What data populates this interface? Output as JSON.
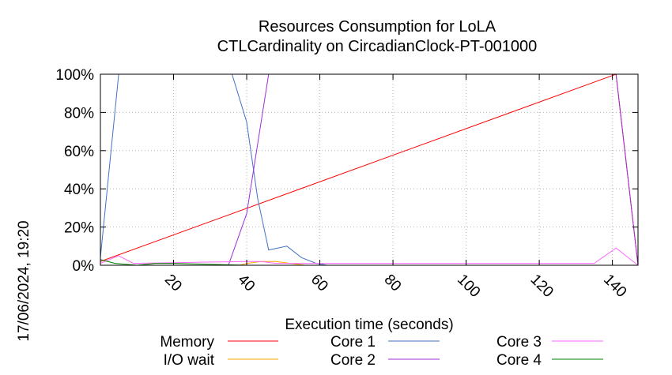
{
  "chart_data": {
    "type": "line",
    "title": "Resources Consumption for LoLA",
    "subtitle": "CTLCardinality on CircadianClock-PT-001000",
    "xlabel": "Execution time (seconds)",
    "ylabel": "",
    "side_label": "17/06/2024, 19:20",
    "xlim": [
      0,
      147
    ],
    "ylim": [
      0,
      100
    ],
    "x_ticks": [
      20,
      40,
      60,
      80,
      100,
      120,
      140
    ],
    "x_tick_labels": [
      "20",
      "40",
      "60",
      "80",
      "100",
      "120",
      "140"
    ],
    "y_ticks": [
      0,
      20,
      40,
      60,
      80,
      100
    ],
    "y_tick_labels": [
      "0%",
      "20%",
      "40%",
      "60%",
      "80%",
      "100%"
    ],
    "grid": true,
    "legend_position": "bottom",
    "series": [
      {
        "name": "Memory",
        "color": "#ff0000",
        "points": [
          [
            0,
            2
          ],
          [
            141,
            100
          ],
          [
            147,
            0
          ]
        ]
      },
      {
        "name": "I/O wait",
        "color": "#ffa500",
        "points": [
          [
            0,
            0
          ],
          [
            38,
            0
          ],
          [
            40,
            1
          ],
          [
            44,
            2
          ],
          [
            48,
            2
          ],
          [
            52,
            1
          ],
          [
            56,
            0
          ],
          [
            147,
            0
          ]
        ]
      },
      {
        "name": "Core 1",
        "color": "#4472c4",
        "points": [
          [
            0,
            4
          ],
          [
            5,
            100
          ],
          [
            36,
            100
          ],
          [
            40,
            75
          ],
          [
            43,
            35
          ],
          [
            46,
            8
          ],
          [
            51,
            10
          ],
          [
            55,
            4
          ],
          [
            59,
            1
          ],
          [
            62,
            0
          ],
          [
            147,
            0
          ]
        ]
      },
      {
        "name": "Core 2",
        "color": "#9b30d9",
        "points": [
          [
            0,
            0
          ],
          [
            35,
            0
          ],
          [
            40,
            27
          ],
          [
            46,
            100
          ],
          [
            141,
            100
          ],
          [
            147,
            0
          ]
        ]
      },
      {
        "name": "Core 3",
        "color": "#ff66ff",
        "points": [
          [
            0,
            1
          ],
          [
            5,
            5
          ],
          [
            9,
            1
          ],
          [
            40,
            2
          ],
          [
            44,
            2
          ],
          [
            48,
            1
          ],
          [
            60,
            1
          ],
          [
            70,
            1
          ],
          [
            88,
            1
          ],
          [
            100,
            1
          ],
          [
            110,
            1
          ],
          [
            120,
            1
          ],
          [
            135,
            1
          ],
          [
            141,
            9
          ],
          [
            147,
            0
          ]
        ]
      },
      {
        "name": "Core 4",
        "color": "#008000",
        "points": [
          [
            0,
            3
          ],
          [
            4,
            1
          ],
          [
            10,
            0
          ],
          [
            15,
            1
          ],
          [
            20,
            1
          ],
          [
            40,
            0
          ],
          [
            147,
            0
          ]
        ]
      }
    ]
  }
}
